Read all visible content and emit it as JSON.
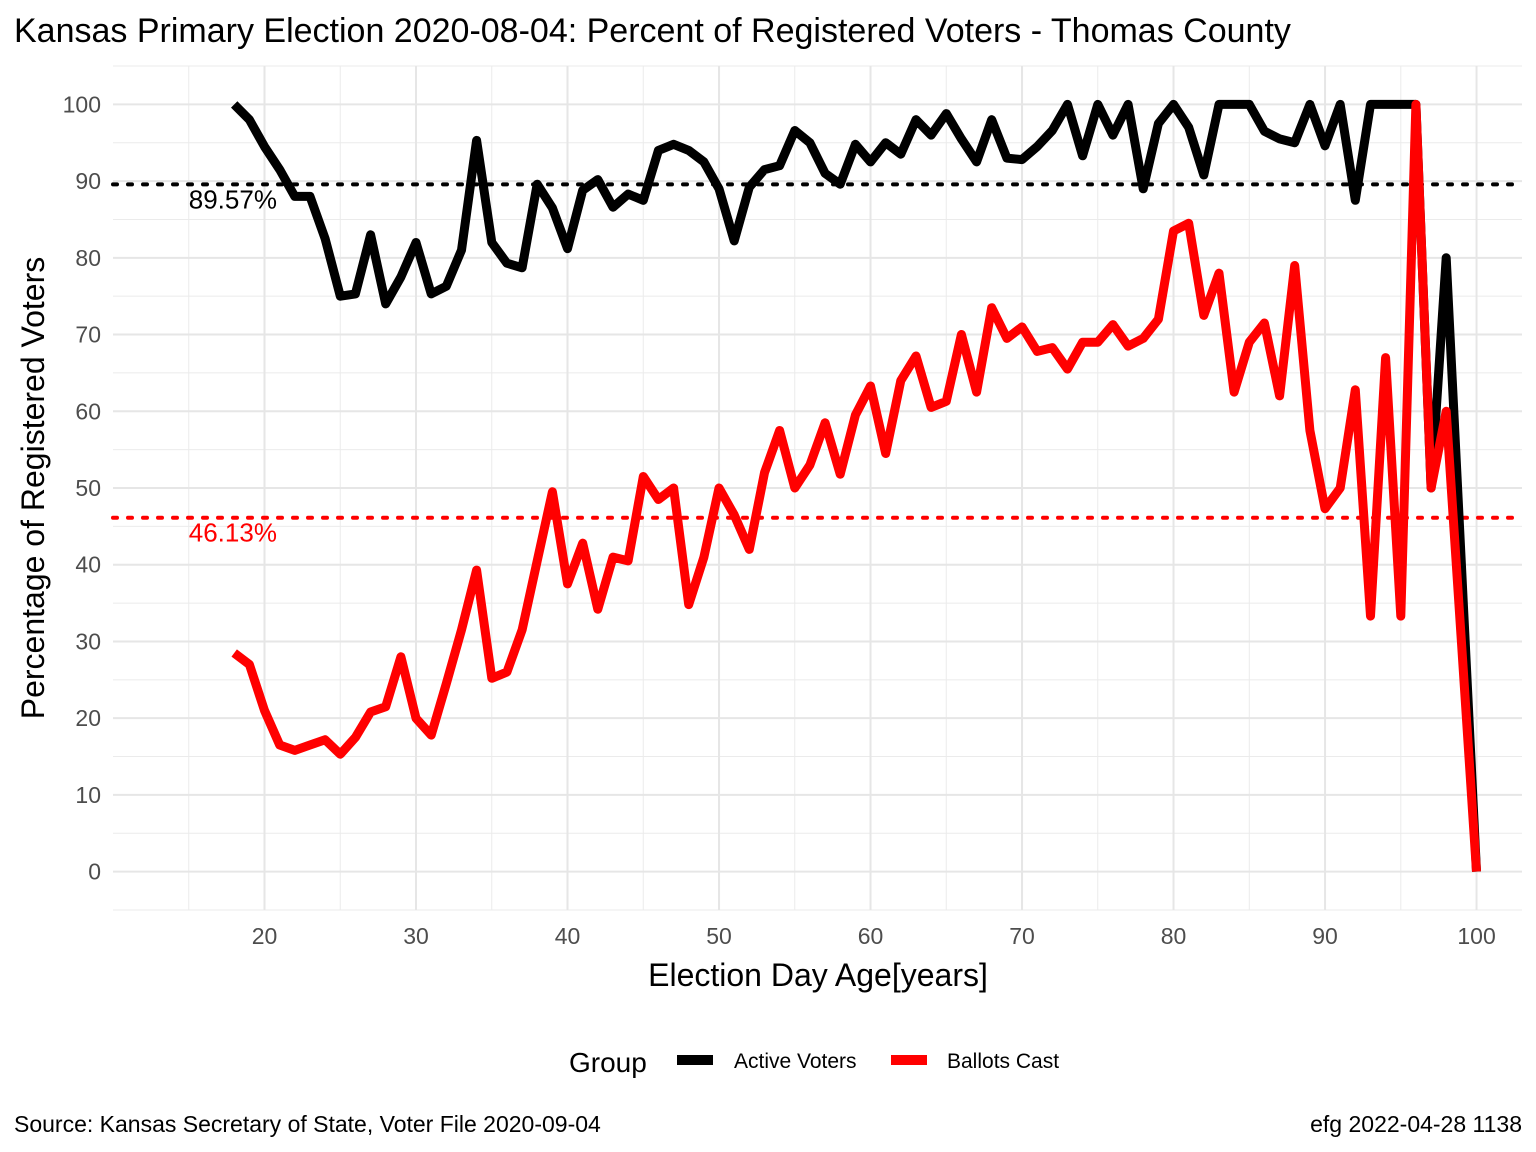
{
  "chart_data": {
    "type": "line",
    "title": "Kansas Primary Election 2020-08-04:  Percent of Registered Voters - Thomas County",
    "xlabel": "Election Day Age[years]",
    "ylabel": "Percentage of Registered Voters",
    "xlim": [
      10,
      103
    ],
    "ylim": [
      -5,
      105
    ],
    "x_ticks": [
      "20",
      "30",
      "40",
      "50",
      "60",
      "70",
      "80",
      "90",
      "100"
    ],
    "y_ticks": [
      "0",
      "10",
      "20",
      "30",
      "40",
      "50",
      "60",
      "70",
      "80",
      "90",
      "100"
    ],
    "grid": true,
    "legend": {
      "title": "Group",
      "position": "bottom"
    },
    "series": [
      {
        "name": "Active Voters",
        "color": "#000000",
        "x": [
          18,
          19,
          20,
          21,
          22,
          23,
          24,
          25,
          26,
          27,
          28,
          29,
          30,
          31,
          32,
          33,
          34,
          35,
          36,
          37,
          38,
          39,
          40,
          41,
          42,
          43,
          44,
          45,
          46,
          47,
          48,
          49,
          50,
          51,
          52,
          53,
          54,
          55,
          56,
          57,
          58,
          59,
          60,
          61,
          62,
          63,
          64,
          65,
          66,
          67,
          68,
          69,
          70,
          71,
          72,
          73,
          74,
          75,
          76,
          77,
          78,
          79,
          80,
          81,
          82,
          83,
          84,
          85,
          86,
          87,
          88,
          89,
          90,
          91,
          92,
          93,
          94,
          95,
          96,
          97,
          98,
          99,
          100
        ],
        "values": [
          100,
          98,
          94.5,
          91.5,
          88,
          88,
          82.5,
          75,
          75.3,
          83,
          74,
          77.5,
          82,
          75.3,
          76.3,
          81,
          95.3,
          82,
          79.3,
          78.7,
          89.6,
          86.5,
          81.2,
          88.8,
          90.2,
          86.6,
          88.3,
          87.5,
          94,
          94.8,
          94,
          92.5,
          89,
          82.2,
          89.2,
          91.5,
          92,
          96.6,
          95,
          91,
          89.6,
          94.8,
          92.5,
          95,
          93.5,
          98,
          96,
          98.8,
          95.5,
          92.5,
          98,
          93,
          92.8,
          94.5,
          96.6,
          100,
          93.3,
          100,
          96,
          100,
          89,
          97.5,
          100,
          97,
          90.8,
          100,
          100,
          100,
          96.5,
          95.5,
          95,
          100,
          94.6,
          100,
          87.5,
          100,
          100,
          100,
          100,
          50,
          80,
          40,
          0
        ]
      },
      {
        "name": "Ballots Cast",
        "color": "#ff0000",
        "x": [
          18,
          19,
          20,
          21,
          22,
          23,
          24,
          25,
          26,
          27,
          28,
          29,
          30,
          31,
          32,
          33,
          34,
          35,
          36,
          37,
          38,
          39,
          40,
          41,
          42,
          43,
          44,
          45,
          46,
          47,
          48,
          49,
          50,
          51,
          52,
          53,
          54,
          55,
          56,
          57,
          58,
          59,
          60,
          61,
          62,
          63,
          64,
          65,
          66,
          67,
          68,
          69,
          70,
          71,
          72,
          73,
          74,
          75,
          76,
          77,
          78,
          79,
          80,
          81,
          82,
          83,
          84,
          85,
          86,
          87,
          88,
          89,
          90,
          91,
          92,
          93,
          94,
          95,
          96,
          97,
          98,
          99,
          100
        ],
        "values": [
          28.5,
          27,
          21,
          16.5,
          15.8,
          16.5,
          17.2,
          15.3,
          17.5,
          20.8,
          21.5,
          28,
          20,
          17.8,
          24.5,
          31.5,
          39.3,
          25.2,
          26,
          31.5,
          40.5,
          49.5,
          37.5,
          42.8,
          34.2,
          41,
          40.5,
          51.5,
          48.5,
          50,
          34.8,
          41,
          50,
          46.5,
          42,
          52,
          57.5,
          50,
          53,
          58.5,
          51.8,
          59.5,
          63.3,
          54.5,
          64,
          67.2,
          60.5,
          61.3,
          70,
          62.5,
          73.5,
          69.5,
          71,
          67.8,
          68.3,
          65.5,
          69,
          69,
          71.3,
          68.5,
          69.5,
          72,
          83.5,
          84.5,
          72.5,
          78,
          62.5,
          69,
          71.5,
          62,
          79,
          57.5,
          47.3,
          50,
          62.8,
          33.3,
          67,
          33.3,
          100,
          50,
          60,
          30,
          0
        ]
      }
    ],
    "reference_lines": [
      {
        "label": "89.57%",
        "value": 89.57,
        "color": "#000000"
      },
      {
        "label": "46.13%",
        "value": 46.13,
        "color": "#ff0000"
      }
    ],
    "caption_left": "Source:  Kansas Secretary of State, Voter File  2020-09-04",
    "caption_right": "efg 2022-04-28 1138"
  }
}
